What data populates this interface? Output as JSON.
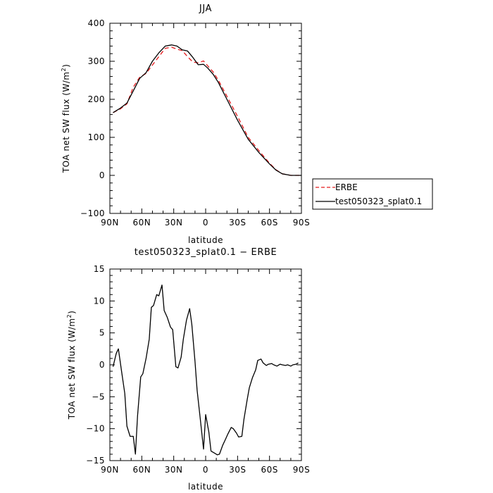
{
  "chart_data": [
    {
      "type": "line",
      "title": "JJA",
      "xlabel": "latitude",
      "ylabel": "TOA net SW flux (W/m²)",
      "ylabel_text": "TOA net SW flux (W/m",
      "ylabel_sup": "2",
      "ylabel_tail": ")",
      "xlim": [
        90,
        -90
      ],
      "ylim": [
        -100,
        400
      ],
      "xticks": [
        90,
        60,
        30,
        0,
        -30,
        -60,
        -90
      ],
      "xtick_labels": [
        "90N",
        "60N",
        "30N",
        "0",
        "30S",
        "60S",
        "90S"
      ],
      "yticks": [
        -100,
        0,
        100,
        200,
        300,
        400
      ],
      "ytick_labels": [
        "−100",
        "0",
        "100",
        "200",
        "300",
        "400"
      ],
      "legend_placement": "right",
      "series": [
        {
          "name": "ERBE",
          "color": "#e41a1c",
          "dash": "dashed",
          "x": [
            87,
            80,
            74,
            68,
            62,
            56,
            50,
            44,
            38,
            32,
            27,
            22,
            17,
            12,
            7,
            2,
            -2,
            -7,
            -12,
            -20,
            -30,
            -40,
            -50,
            -60,
            -66,
            -72,
            -80,
            -90
          ],
          "y": [
            165,
            175,
            188,
            232,
            258,
            268,
            290,
            312,
            334,
            337,
            332,
            328,
            312,
            298,
            296,
            301,
            288,
            272,
            250,
            208,
            155,
            100,
            65,
            32,
            15,
            4,
            0,
            0
          ]
        },
        {
          "name": "test050323_splat0.1",
          "color": "#000000",
          "dash": "solid",
          "x": [
            87,
            80,
            74,
            68,
            62,
            56,
            50,
            44,
            38,
            32,
            27,
            22,
            17,
            12,
            7,
            2,
            -2,
            -7,
            -12,
            -20,
            -30,
            -40,
            -50,
            -60,
            -66,
            -72,
            -80,
            -90
          ],
          "y": [
            165,
            177,
            190,
            222,
            255,
            270,
            300,
            322,
            340,
            343,
            340,
            330,
            327,
            310,
            291,
            292,
            282,
            266,
            244,
            200,
            145,
            95,
            60,
            30,
            14,
            4,
            0,
            0
          ]
        }
      ]
    },
    {
      "type": "line",
      "title": "test050323_splat0.1 − ERBE",
      "xlabel": "latitude",
      "ylabel": "TOA net SW flux (W/m²)",
      "ylabel_text": "TOA net SW flux (W/m",
      "ylabel_sup": "2",
      "ylabel_tail": ")",
      "xlim": [
        90,
        -90
      ],
      "ylim": [
        -15,
        15
      ],
      "xticks": [
        90,
        60,
        30,
        0,
        -30,
        -60,
        -90
      ],
      "xtick_labels": [
        "90N",
        "60N",
        "30N",
        "0",
        "30S",
        "60S",
        "90S"
      ],
      "yticks": [
        -15,
        -10,
        -5,
        0,
        5,
        10,
        15
      ],
      "ytick_labels": [
        "−15",
        "−10",
        "−5",
        "0",
        "5",
        "10",
        "15"
      ],
      "series": [
        {
          "color": "#000000",
          "dash": "solid",
          "x": [
            87,
            84,
            82,
            79,
            76,
            74,
            71,
            68,
            66,
            64,
            61,
            59,
            56,
            53,
            51,
            49,
            46,
            44,
            41,
            39,
            36,
            33,
            31,
            28,
            26,
            23,
            21,
            18,
            15,
            13,
            10,
            8,
            5,
            2,
            0,
            -3,
            -5,
            -8,
            -11,
            -13,
            -16,
            -18,
            -21,
            -24,
            -26,
            -29,
            -31,
            -34,
            -36,
            -39,
            -41,
            -44,
            -47,
            -49,
            -52,
            -54,
            -57,
            -59,
            -62,
            -64,
            -67,
            -70,
            -72,
            -75,
            -77,
            -80,
            -82,
            -85,
            -87
          ],
          "y": [
            -0.3,
            1.8,
            2.5,
            -1.0,
            -4.5,
            -9.6,
            -11.2,
            -11.2,
            -14.0,
            -8.0,
            -1.9,
            -1.4,
            1.0,
            4.0,
            9.0,
            9.3,
            11.0,
            10.8,
            12.5,
            8.5,
            7.4,
            5.9,
            5.5,
            -0.3,
            -0.5,
            1.2,
            4.0,
            7.0,
            8.8,
            6.3,
            0.5,
            -4.0,
            -8.5,
            -13.2,
            -7.8,
            -10.5,
            -13.5,
            -13.8,
            -14.1,
            -14.0,
            -12.6,
            -11.9,
            -10.8,
            -9.8,
            -10.0,
            -10.7,
            -11.3,
            -11.2,
            -8.5,
            -5.5,
            -3.6,
            -2.0,
            -0.8,
            0.7,
            0.9,
            0.3,
            -0.1,
            0.1,
            0.2,
            0.0,
            -0.2,
            0.1,
            0.0,
            -0.1,
            0.0,
            -0.2,
            0.0,
            0.1,
            0.3
          ]
        }
      ]
    }
  ]
}
